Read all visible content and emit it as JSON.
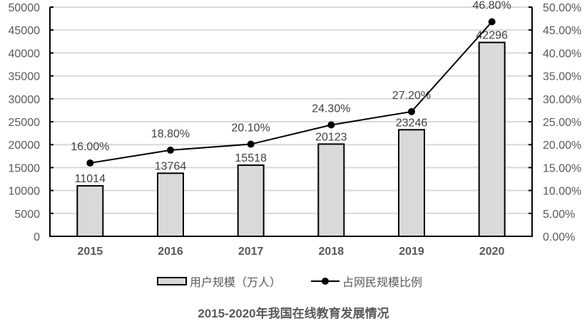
{
  "chart_data": {
    "type": "bar+line",
    "title": "2015-2020年我国在线教育发展情况",
    "categories": [
      "2015",
      "2016",
      "2017",
      "2018",
      "2019",
      "2020"
    ],
    "series": [
      {
        "name": "用户规模（万人）",
        "type": "bar",
        "axis": "left",
        "values": [
          11014,
          13764,
          15518,
          20123,
          23246,
          42296
        ],
        "labels": [
          "11014",
          "13764",
          "15518",
          "20123",
          "23246",
          "42296"
        ],
        "color": "#d9d9d9",
        "border": "#000000"
      },
      {
        "name": "占网民规模比例",
        "type": "line",
        "axis": "right",
        "values": [
          16.0,
          18.8,
          20.1,
          24.3,
          27.2,
          46.8
        ],
        "labels": [
          "16.00%",
          "18.80%",
          "20.10%",
          "24.30%",
          "27.20%",
          "46.80%"
        ],
        "color": "#000000"
      }
    ],
    "left_axis": {
      "ylim": [
        0,
        50000
      ],
      "ticks": [
        "0",
        "5000",
        "10000",
        "15000",
        "20000",
        "25000",
        "30000",
        "35000",
        "40000",
        "45000",
        "50000"
      ]
    },
    "right_axis": {
      "ylim": [
        0,
        50
      ],
      "ticks": [
        "0.00%",
        "5.00%",
        "10.00%",
        "15.00%",
        "20.00%",
        "25.00%",
        "30.00%",
        "35.00%",
        "40.00%",
        "45.00%",
        "50.00%"
      ]
    },
    "xlabel": "",
    "ylabel": "",
    "grid": true,
    "legend_position": "bottom"
  },
  "legend": {
    "bar_label": "用户规模（万人）",
    "line_label": "占网民规模比例"
  },
  "title": "2015-2020年我国在线教育发展情况"
}
